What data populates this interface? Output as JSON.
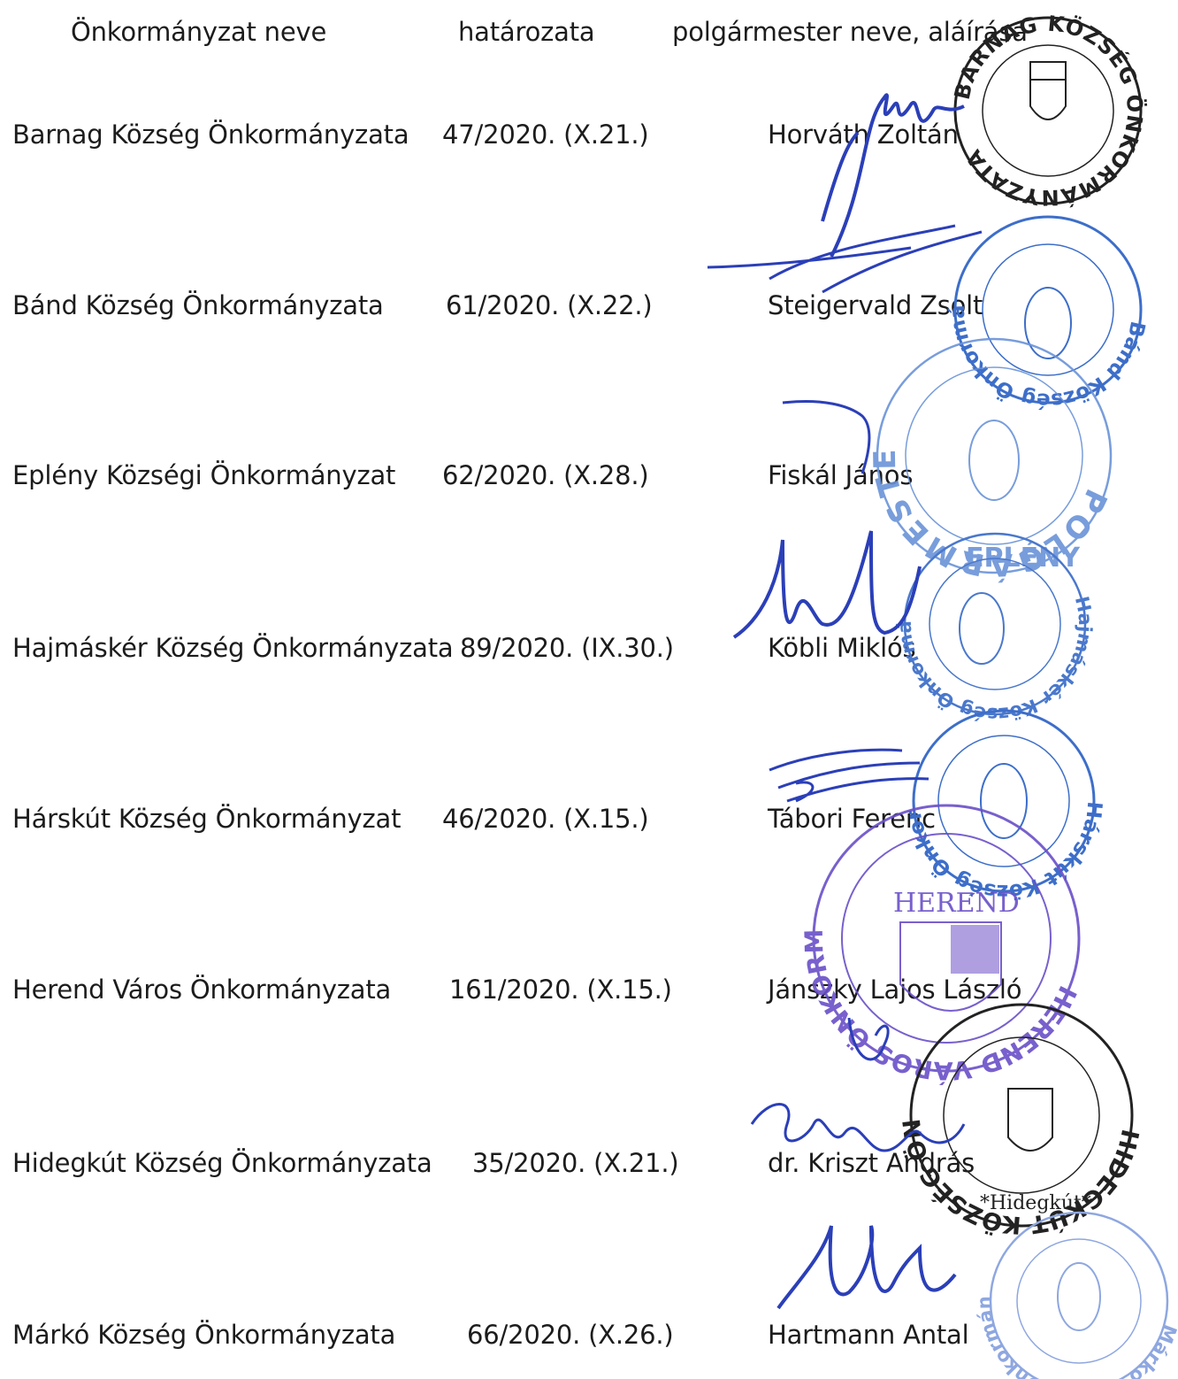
{
  "headers": {
    "name": "Önkormányzat neve",
    "resolution": "határozata",
    "mayor": "polgármester neve, aláírása"
  },
  "rows": [
    {
      "name": "Barnag Község Önkormányzata",
      "resolution": "47/2020. (X.21.)",
      "mayor": "Horváth Zoltán"
    },
    {
      "name": "Bánd Község Önkormányzata",
      "resolution": "61/2020. (X.22.)",
      "mayor": "Steigervald Zsolt"
    },
    {
      "name": "Eplény Községi Önkormányzat",
      "resolution": "62/2020. (X.28.)",
      "mayor": "Fiskál János"
    },
    {
      "name": "Hajmáskér Község Önkormányzata",
      "resolution": "89/2020. (IX.30.)",
      "mayor": "Köbli Miklós"
    },
    {
      "name": "Hárskút Község Önkormányzat",
      "resolution": "46/2020. (X.15.)",
      "mayor": "Tábori Ferenc"
    },
    {
      "name": "Herend Város Önkormányzata",
      "resolution": "161/2020. (X.15.)",
      "mayor": "Jánszky Lajos László"
    },
    {
      "name": "Hidegkút Község Önkormányzata",
      "resolution": "35/2020. (X.21.)",
      "mayor": "dr. Kriszt András"
    },
    {
      "name": "Márkó Község Önkormányzata",
      "resolution": "66/2020. (X.26.)",
      "mayor": "Hartmann Antal"
    }
  ],
  "stamps": {
    "barnag": "BARNAG KÖZSÉG ÖNKORMÁNYZATA",
    "band": "Bánd Község Önkormányzata",
    "eplany_polgarmester": "POLGÁRMESTER",
    "eplany_city": "EPLÉNY",
    "hajmasker": "Hajmáskér Község Önkormányzata",
    "harskut": "Hárskút Község Önkormányzata",
    "herend": "HEREND VÁROS ÖNKORMÁNYZATA",
    "herend_city": "HEREND",
    "hidegkut": "HIDEGKÚT KÖZSÉG ÖNKORMÁNYZATA",
    "hidegkut_city": "*Hidegkút*",
    "marko": "Márkó Község Önkormányzata"
  },
  "colors": {
    "text": "#1c1c1c",
    "ink_blue": "#2b3fb8",
    "stamp_blue": "#3d6ec9",
    "stamp_violet": "#6a4fc8",
    "stamp_black": "#222222"
  }
}
